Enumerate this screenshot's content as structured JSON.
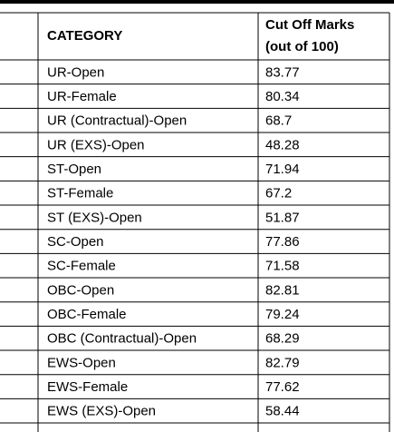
{
  "table": {
    "header": {
      "category": "CATEGORY",
      "marks": [
        "Cut Off Marks",
        "(out of 100)"
      ]
    },
    "rows": [
      [
        "UR-Open",
        83.77
      ],
      [
        "UR-Female",
        80.34
      ],
      [
        "UR (Contractual)-Open",
        68.7
      ],
      [
        "UR (EXS)-Open",
        48.28
      ],
      [
        "ST-Open",
        71.94
      ],
      [
        "ST-Female",
        67.2
      ],
      [
        "ST (EXS)-Open",
        51.87
      ],
      [
        "SC-Open",
        77.86
      ],
      [
        "SC-Female",
        71.58
      ],
      [
        "OBC-Open",
        82.81
      ],
      [
        "OBC-Female",
        79.24
      ],
      [
        "OBC (Contractual)-Open",
        68.29
      ],
      [
        "EWS-Open",
        82.79
      ],
      [
        "EWS-Female",
        77.62
      ],
      [
        "EWS (EXS)-Open",
        58.44
      ]
    ]
  }
}
